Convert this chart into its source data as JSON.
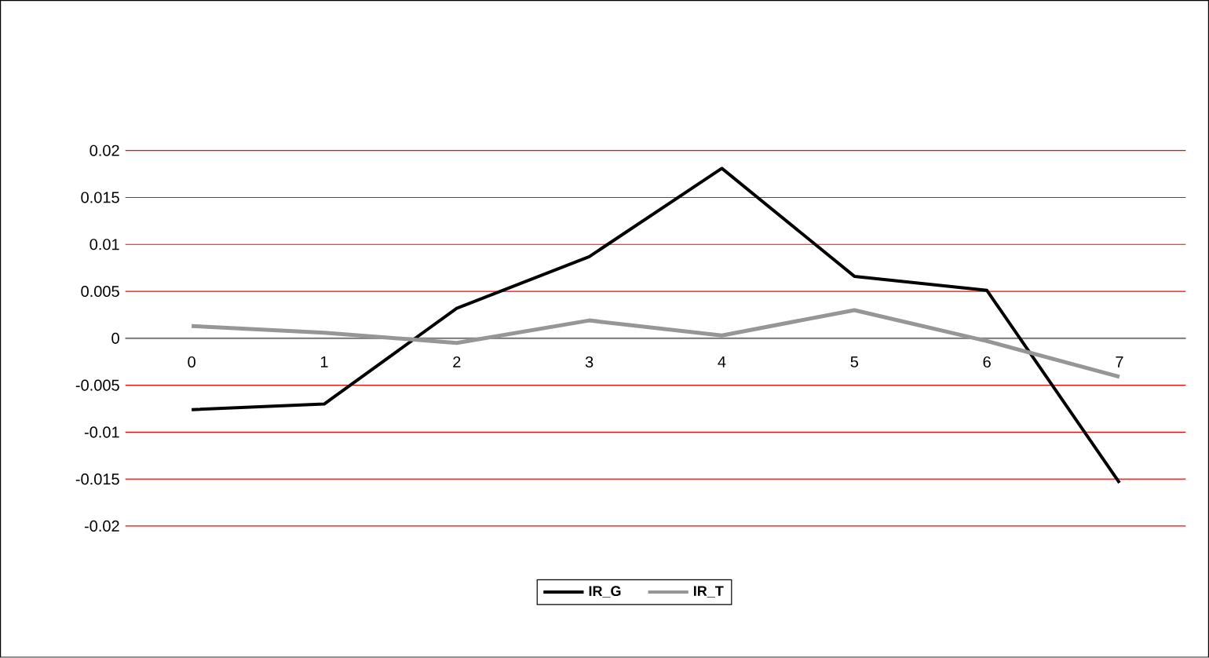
{
  "chart_data": {
    "type": "line",
    "categories": [
      "0",
      "1",
      "2",
      "3",
      "4",
      "5",
      "6",
      "7"
    ],
    "series": [
      {
        "name": "IR_G",
        "color": "#000000",
        "values": [
          -0.0076,
          -0.007,
          0.0032,
          0.0087,
          0.0181,
          0.0066,
          0.0051,
          -0.0154
        ]
      },
      {
        "name": "IR_T",
        "color": "#969696",
        "values": [
          0.0013,
          0.0006,
          -0.0005,
          0.0019,
          0.0003,
          0.003,
          -0.0003,
          -0.0041
        ]
      }
    ],
    "ylim": [
      -0.02,
      0.02
    ],
    "yticks": [
      -0.02,
      -0.015,
      -0.01,
      -0.005,
      0,
      0.005,
      0.01,
      0.015,
      0.02
    ],
    "grid": "y",
    "legend": "bottom",
    "marker": "none",
    "line_style": "solid"
  }
}
